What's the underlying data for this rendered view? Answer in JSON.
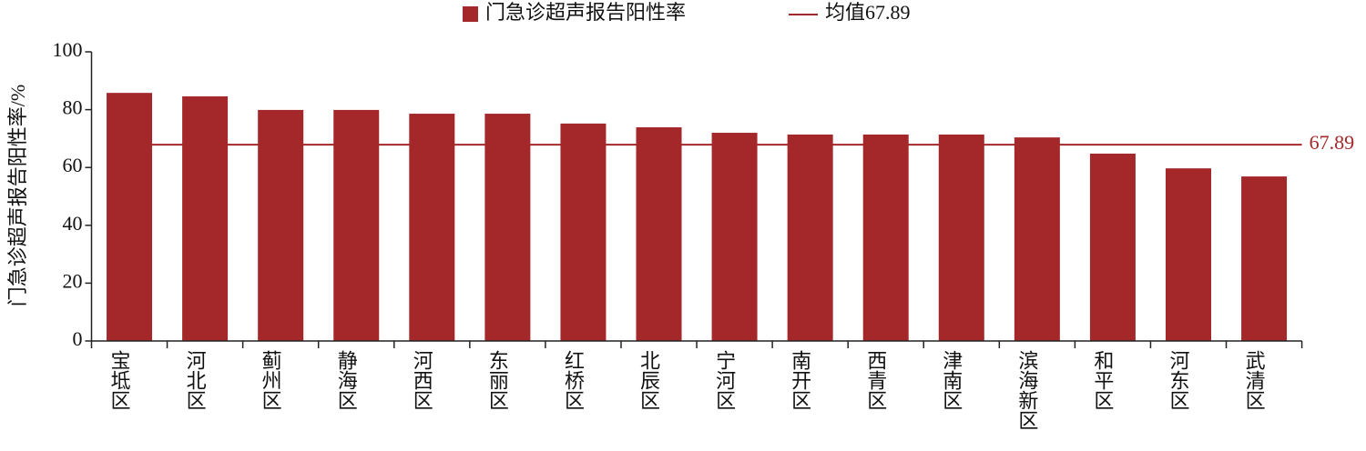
{
  "chart_data": {
    "type": "bar",
    "y_label": "门急诊超声报告阳性率/%",
    "series": [
      {
        "name": "门急诊超声报告阳性率",
        "color": "#a4282a",
        "values": [
          85.8,
          84.6,
          79.9,
          79.9,
          78.6,
          78.6,
          75.2,
          73.9,
          72.0,
          71.4,
          71.4,
          71.4,
          70.4,
          64.8,
          59.7,
          56.9
        ]
      }
    ],
    "categories": [
      "宝坻区",
      "河北区",
      "蓟州区",
      "静海区",
      "河西区",
      "东丽区",
      "红桥区",
      "北辰区",
      "宁河区",
      "南开区",
      "西青区",
      "津南区",
      "滨海新区",
      "和平区",
      "河东区",
      "武清区"
    ],
    "mean_line": {
      "name": "均值67.89",
      "value": 67.89,
      "color": "#a4282a"
    },
    "ylim": [
      0,
      100
    ],
    "yticks": [
      0,
      20,
      40,
      60,
      80,
      100
    ],
    "grid": false,
    "legend": "top"
  }
}
